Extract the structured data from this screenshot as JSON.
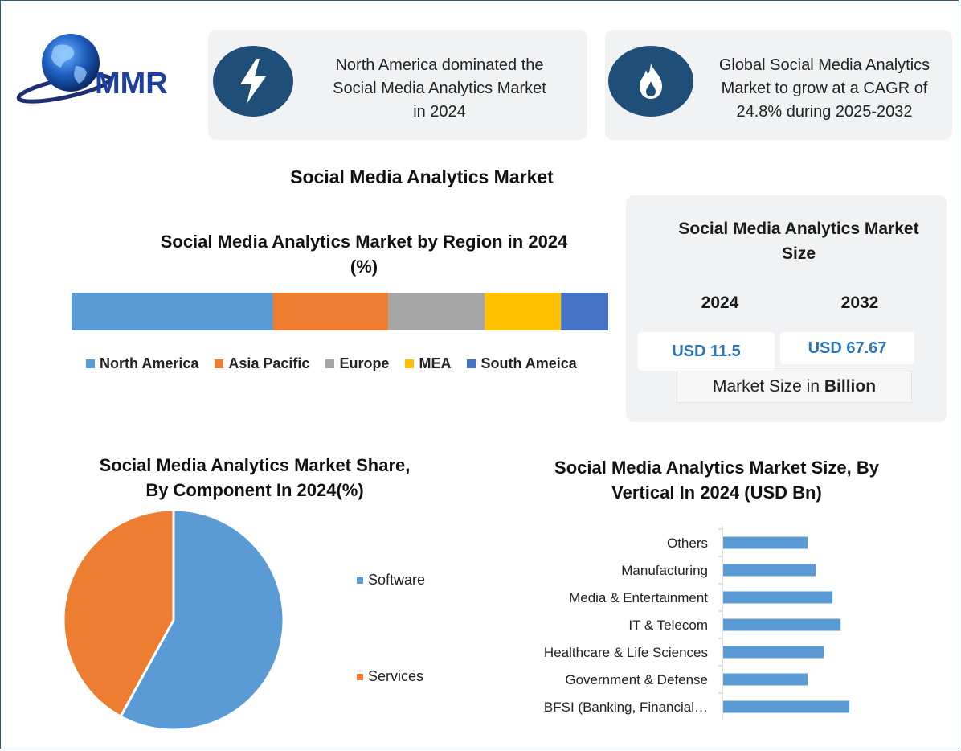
{
  "brand": {
    "logo_text": "MMR"
  },
  "highlights": [
    {
      "icon": "lightning-icon",
      "text_line1": "North America dominated the",
      "text_line2": "Social Media Analytics Market",
      "text_line3": "in 2024"
    },
    {
      "icon": "flame-icon",
      "text_line1": "Global Social Media Analytics",
      "text_line2": "Market to grow at a CAGR of",
      "text_line3": "24.8% during 2025-2032"
    }
  ],
  "main_title": "Social Media Analytics Market",
  "market_size": {
    "title_line1": "Social Media Analytics Market",
    "title_line2": "Size",
    "years": [
      "2024",
      "2032"
    ],
    "values": [
      "USD 11.5",
      "USD 67.67"
    ],
    "unit_prefix": "Market Size in ",
    "unit_bold": "Billion"
  },
  "colors": {
    "north_america": "#5b9bd5",
    "asia_pacific": "#ed7d31",
    "europe": "#a5a5a5",
    "mea": "#ffc000",
    "south_america": "#4472c4",
    "software": "#5b9bd5",
    "services": "#ed7d31",
    "vertical_bar": "#5b9bd5",
    "icon_bg": "#1f4e79"
  },
  "chart_data": [
    {
      "type": "bar",
      "orientation": "horizontal-stacked-100",
      "title_line1": "Social Media Analytics Market by Region in 2024",
      "title_line2": "(%)",
      "series": [
        {
          "name": "North America",
          "value": 37.5
        },
        {
          "name": "Asia Pacific",
          "value": 21.5
        },
        {
          "name": "Europe",
          "value": 18
        },
        {
          "name": "MEA",
          "value": 14.2
        },
        {
          "name": "South Ameica",
          "value": 8.8
        }
      ],
      "legend": "bottom"
    },
    {
      "type": "pie",
      "title_line1": "Social Media Analytics Market Share,",
      "title_line2": "By Component In 2024(%)",
      "slices": [
        {
          "label": "Software",
          "value": 58
        },
        {
          "label": "Services",
          "value": 42
        }
      ],
      "legend": "right"
    },
    {
      "type": "bar",
      "orientation": "horizontal",
      "title_line1": "Social Media Analytics Market Size, By",
      "title_line2": "Vertical In 2024 (USD Bn)",
      "categories": [
        "Others",
        "Manufacturing",
        "Media & Entertainment",
        "IT & Telecom",
        "Healthcare & Life Sciences",
        "Government & Defense",
        "BFSI (Banking, Financial…"
      ],
      "values": [
        1.35,
        1.48,
        1.75,
        1.88,
        1.61,
        1.35,
        2.02
      ],
      "xlim": [
        0,
        3.6
      ],
      "grid": false
    }
  ]
}
